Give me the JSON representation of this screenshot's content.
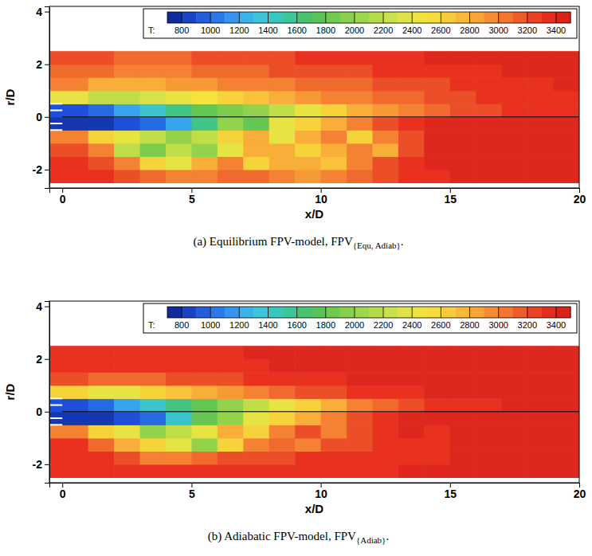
{
  "chart_data": [
    {
      "type": "heatmap",
      "caption": [
        "(a) Equilibrium FPV-model, FPV",
        "{Equ, Adiab}",
        "."
      ],
      "xlabel": "x/D",
      "ylabel": "r/D",
      "xlim": [
        -0.5,
        20
      ],
      "ylim": [
        -2.7,
        4.2
      ],
      "xticks": [
        0,
        5,
        10,
        15,
        20
      ],
      "yticks": [
        -2,
        0,
        2,
        4
      ],
      "x_edges": [
        -0.5,
        1,
        2,
        3,
        4,
        5,
        6,
        7,
        8,
        9,
        10,
        11,
        12,
        13,
        14,
        15,
        16,
        17,
        18,
        19,
        20
      ],
      "r_edges": [
        -2.5,
        -2,
        -1.5,
        -1,
        -0.5,
        0,
        0.5,
        1,
        1.5,
        2,
        2.5
      ],
      "cells": [
        [
          3300,
          3300,
          3200,
          3100,
          3000,
          3000,
          3100,
          3100,
          3000,
          2900,
          3000,
          3100,
          3200,
          3300,
          3300,
          3400,
          3400,
          3400,
          3400,
          3400
        ],
        [
          3300,
          3200,
          3000,
          2600,
          2400,
          2800,
          3000,
          2600,
          2800,
          2800,
          2700,
          3000,
          3200,
          3300,
          3400,
          3400,
          3400,
          3400,
          3400,
          3400
        ],
        [
          3200,
          3000,
          2200,
          1900,
          2200,
          2000,
          2400,
          2800,
          2800,
          2600,
          2800,
          3000,
          2800,
          3200,
          3400,
          3400,
          3400,
          3400,
          3400,
          3400
        ],
        [
          3000,
          2600,
          2400,
          2200,
          2000,
          2200,
          2600,
          2800,
          2400,
          2800,
          3000,
          2600,
          3000,
          3200,
          3400,
          3400,
          3400,
          3400,
          3400,
          3400
        ],
        [
          800,
          800,
          900,
          1000,
          1200,
          1600,
          2000,
          1800,
          2400,
          2600,
          2800,
          3000,
          3200,
          3300,
          3400,
          3400,
          3400,
          3400,
          3400,
          3400
        ],
        [
          900,
          1000,
          1200,
          1400,
          1600,
          1800,
          1900,
          2000,
          2200,
          2400,
          2600,
          2800,
          2900,
          3000,
          3100,
          3200,
          3200,
          3300,
          3300,
          3300
        ],
        [
          2400,
          2200,
          2200,
          2300,
          2400,
          2500,
          2600,
          2700,
          2800,
          2900,
          3000,
          3000,
          3100,
          3100,
          3200,
          3200,
          3300,
          3300,
          3300,
          3300
        ],
        [
          3000,
          2800,
          2800,
          2800,
          2900,
          2900,
          3000,
          3000,
          3000,
          3100,
          3100,
          3100,
          3200,
          3200,
          3200,
          3300,
          3300,
          3300,
          3300,
          3400
        ],
        [
          3100,
          3100,
          3000,
          3000,
          3000,
          3100,
          3100,
          3100,
          3200,
          3200,
          3200,
          3200,
          3300,
          3300,
          3300,
          3300,
          3300,
          3400,
          3400,
          3400
        ],
        [
          3200,
          3200,
          3100,
          3100,
          3100,
          3200,
          3200,
          3200,
          3200,
          3300,
          3300,
          3300,
          3300,
          3300,
          3400,
          3400,
          3400,
          3400,
          3400,
          3400
        ]
      ],
      "colorbar": {
        "label": "T:",
        "range": [
          700,
          3500
        ],
        "ticks": [
          800,
          1000,
          1200,
          1400,
          1600,
          1800,
          2000,
          2200,
          2400,
          2600,
          2800,
          3000,
          3200,
          3400
        ]
      }
    },
    {
      "type": "heatmap",
      "caption": [
        "(b) Adiabatic FPV-model, FPV",
        "{Adiab}",
        "."
      ],
      "xlabel": "x/D",
      "ylabel": "r/D",
      "xlim": [
        -0.5,
        20
      ],
      "ylim": [
        -2.7,
        4.2
      ],
      "xticks": [
        0,
        5,
        10,
        15,
        20
      ],
      "yticks": [
        -2,
        0,
        2,
        4
      ],
      "x_edges": [
        -0.5,
        1,
        2,
        3,
        4,
        5,
        6,
        7,
        8,
        9,
        10,
        11,
        12,
        13,
        14,
        15,
        16,
        17,
        18,
        19,
        20
      ],
      "r_edges": [
        -2.5,
        -2,
        -1.5,
        -1,
        -0.5,
        0,
        0.5,
        1,
        1.5,
        2,
        2.5
      ],
      "cells": [
        [
          3300,
          3300,
          3300,
          3300,
          3300,
          3300,
          3300,
          3300,
          3300,
          3300,
          3300,
          3300,
          3300,
          3400,
          3400,
          3400,
          3400,
          3400,
          3400,
          3400
        ],
        [
          3300,
          3300,
          3200,
          3000,
          3000,
          3100,
          3200,
          3200,
          3200,
          3300,
          3300,
          3300,
          3300,
          3300,
          3300,
          3400,
          3400,
          3400,
          3400,
          3400
        ],
        [
          3300,
          3100,
          2800,
          2600,
          2400,
          2000,
          2600,
          3000,
          3100,
          3000,
          3200,
          3200,
          3300,
          3300,
          3300,
          3400,
          3400,
          3400,
          3400,
          3400
        ],
        [
          3000,
          2600,
          2400,
          2000,
          2200,
          2400,
          2800,
          2600,
          3000,
          3200,
          3000,
          3200,
          3300,
          3400,
          3300,
          3400,
          3400,
          3400,
          3400,
          3400
        ],
        [
          800,
          800,
          900,
          1000,
          1400,
          1800,
          2000,
          2400,
          2600,
          2800,
          3000,
          3200,
          3300,
          3400,
          3400,
          3400,
          3400,
          3400,
          3400,
          3400
        ],
        [
          900,
          1000,
          1200,
          1400,
          1600,
          1800,
          2000,
          2200,
          2400,
          2600,
          2800,
          3000,
          3100,
          3200,
          3300,
          3300,
          3300,
          3400,
          3400,
          3400
        ],
        [
          2600,
          2400,
          2400,
          2600,
          2700,
          2800,
          2900,
          3000,
          3100,
          3200,
          3200,
          3300,
          3300,
          3300,
          3400,
          3400,
          3400,
          3400,
          3400,
          3400
        ],
        [
          3200,
          3100,
          3100,
          3100,
          3200,
          3200,
          3200,
          3300,
          3300,
          3300,
          3300,
          3400,
          3400,
          3400,
          3400,
          3400,
          3400,
          3400,
          3400,
          3400
        ],
        [
          3300,
          3300,
          3300,
          3300,
          3300,
          3300,
          3300,
          3300,
          3400,
          3400,
          3400,
          3400,
          3400,
          3400,
          3400,
          3400,
          3400,
          3400,
          3400,
          3400
        ],
        [
          3300,
          3300,
          3300,
          3300,
          3300,
          3300,
          3300,
          3400,
          3400,
          3400,
          3400,
          3400,
          3400,
          3400,
          3400,
          3400,
          3400,
          3400,
          3400,
          3400
        ]
      ],
      "colorbar": {
        "label": "T:",
        "range": [
          700,
          3500
        ],
        "ticks": [
          800,
          1000,
          1200,
          1400,
          1600,
          1800,
          2000,
          2200,
          2400,
          2600,
          2800,
          3000,
          3200,
          3400
        ]
      }
    }
  ]
}
